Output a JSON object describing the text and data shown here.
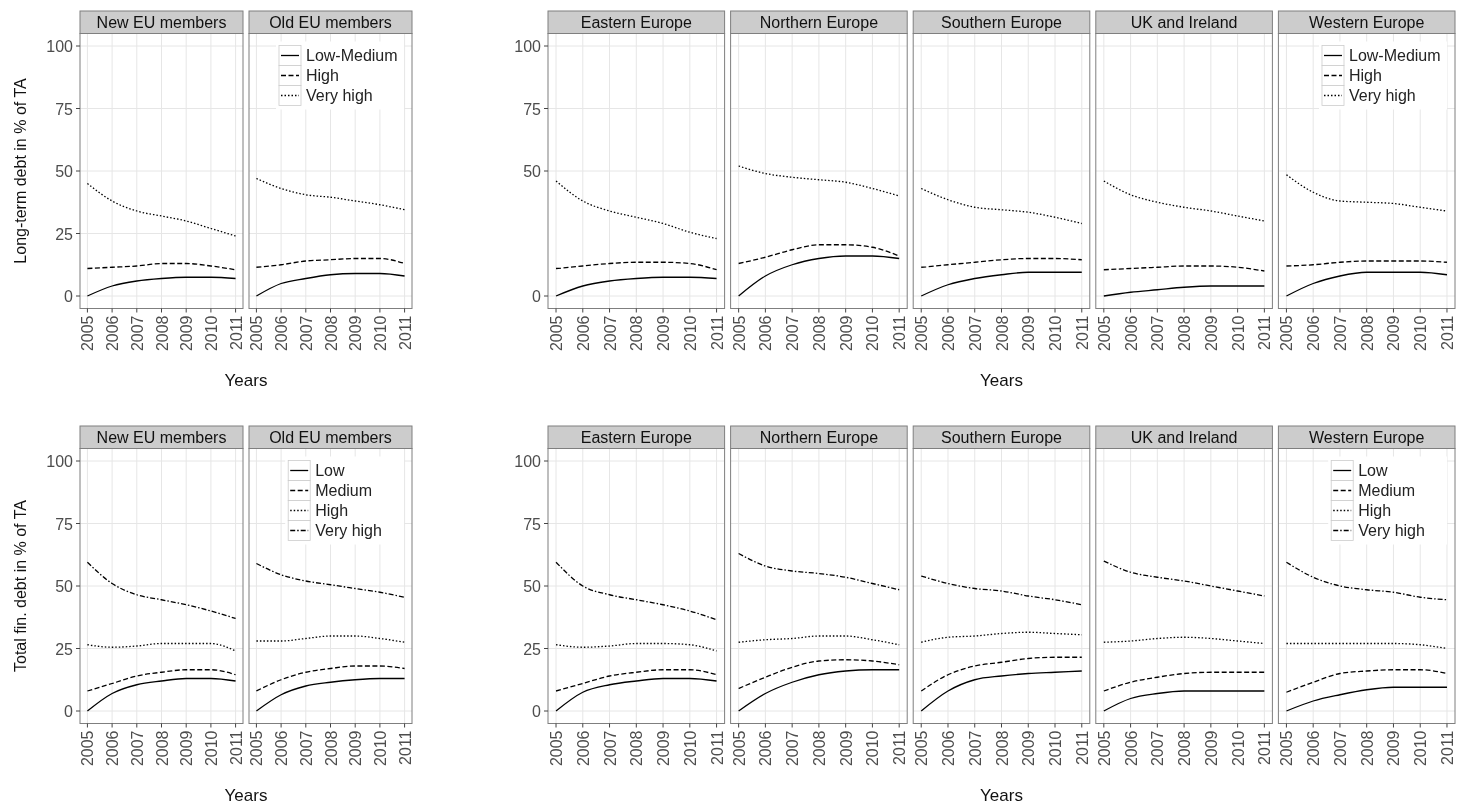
{
  "chart_data": [
    {
      "type": "line",
      "title": "New EU members",
      "ylabel": "Long-term debt in % of TA",
      "xlabel": "Years",
      "x": [
        2005,
        2006,
        2007,
        2008,
        2009,
        2010,
        2011
      ],
      "xlim": [
        2004.7,
        2011.3
      ],
      "xticks": [
        2005,
        2006,
        2007,
        2008,
        2009,
        2010,
        2011
      ],
      "ylim": [
        -5,
        105
      ],
      "yticks": [
        0,
        25,
        50,
        75,
        100
      ],
      "grid": true,
      "series": [
        {
          "color": "#000000",
          "line_style": "solid",
          "values": [
            0,
            4,
            6,
            7,
            7.5,
            7.5,
            7
          ]
        },
        {
          "color": "#000000",
          "line_style": "dashed",
          "values": [
            11,
            11.5,
            12,
            13,
            13,
            12,
            10.5
          ]
        },
        {
          "color": "#000000",
          "line_style": "dotted",
          "values": [
            45,
            38,
            34,
            32,
            30,
            27,
            24
          ]
        }
      ]
    },
    {
      "type": "line",
      "title": "Old EU members",
      "x": [
        2005,
        2006,
        2007,
        2008,
        2009,
        2010,
        2011
      ],
      "xlim": [
        2004.7,
        2011.3
      ],
      "xticks": [
        2005,
        2006,
        2007,
        2008,
        2009,
        2010,
        2011
      ],
      "ylim": [
        -5,
        105
      ],
      "yticks": [
        0,
        25,
        50,
        75,
        100
      ],
      "grid": true,
      "tick_labels": "x",
      "legend": "top right",
      "series": [
        {
          "name": "Low-Medium",
          "color": "#000000",
          "line_style": "solid",
          "values": [
            0,
            5,
            7,
            8.5,
            9,
            9,
            8
          ]
        },
        {
          "name": "High",
          "color": "#000000",
          "line_style": "dashed",
          "values": [
            11.5,
            12.5,
            14,
            14.5,
            15,
            15,
            13
          ]
        },
        {
          "name": "Very high",
          "color": "#000000",
          "line_style": "dotted",
          "values": [
            47,
            43,
            40.5,
            39.5,
            38,
            36.5,
            34.5
          ]
        }
      ]
    },
    {
      "type": "line",
      "title": "Eastern Europe",
      "x": [
        2005,
        2006,
        2007,
        2008,
        2009,
        2010,
        2011
      ],
      "xlim": [
        2004.7,
        2011.3
      ],
      "xticks": [
        2005,
        2006,
        2007,
        2008,
        2009,
        2010,
        2011
      ],
      "ylim": [
        -5,
        105
      ],
      "yticks": [
        0,
        50,
        75,
        100
      ],
      "grid": true,
      "series": [
        {
          "color": "#000000",
          "line_style": "solid",
          "values": [
            0,
            4,
            6,
            7,
            7.5,
            7.5,
            7
          ]
        },
        {
          "color": "#000000",
          "line_style": "dashed",
          "values": [
            11,
            12,
            13,
            13.5,
            13.5,
            13,
            10.5
          ]
        },
        {
          "color": "#000000",
          "line_style": "dotted",
          "values": [
            46,
            38,
            34,
            31.5,
            29,
            25.5,
            23
          ]
        }
      ]
    },
    {
      "type": "line",
      "title": "Northern Europe",
      "x": [
        2005,
        2006,
        2007,
        2008,
        2009,
        2010,
        2011
      ],
      "xlim": [
        2004.7,
        2011.3
      ],
      "xticks": [
        2005,
        2006,
        2007,
        2008,
        2009,
        2010,
        2011
      ],
      "ylim": [
        -5,
        105
      ],
      "yticks": [
        0,
        50,
        75,
        100
      ],
      "grid": true,
      "tick_labels": "x",
      "series": [
        {
          "color": "#000000",
          "line_style": "solid",
          "values": [
            0,
            8,
            12.5,
            15,
            16,
            16,
            15
          ]
        },
        {
          "color": "#000000",
          "line_style": "dashed",
          "values": [
            13,
            15.5,
            18.5,
            20.5,
            20.5,
            19.5,
            16
          ]
        },
        {
          "color": "#000000",
          "line_style": "dotted",
          "values": [
            52,
            49,
            47.5,
            46.5,
            45.5,
            43,
            40
          ]
        }
      ]
    },
    {
      "type": "line",
      "title": "Southern Europe",
      "xlabel": "Years",
      "x": [
        2005,
        2006,
        2007,
        2008,
        2009,
        2010,
        2011
      ],
      "xlim": [
        2004.7,
        2011.3
      ],
      "xticks": [
        2005,
        2006,
        2007,
        2008,
        2009,
        2010,
        2011
      ],
      "ylim": [
        -5,
        105
      ],
      "yticks": [
        0,
        50,
        75,
        100
      ],
      "grid": true,
      "tick_labels": "x",
      "series": [
        {
          "color": "#000000",
          "line_style": "solid",
          "values": [
            0,
            4.5,
            7,
            8.5,
            9.5,
            9.5,
            9.5
          ]
        },
        {
          "color": "#000000",
          "line_style": "dashed",
          "values": [
            11.5,
            12.5,
            13.5,
            14.5,
            15,
            15,
            14.5
          ]
        },
        {
          "color": "#000000",
          "line_style": "dotted",
          "values": [
            43,
            38.5,
            35.5,
            34.5,
            33.5,
            31.5,
            29
          ]
        }
      ]
    },
    {
      "type": "line",
      "title": "UK and Ireland",
      "x": [
        2005,
        2006,
        2007,
        2008,
        2009,
        2010,
        2011
      ],
      "xlim": [
        2004.7,
        2011.3
      ],
      "xticks": [
        2005,
        2006,
        2007,
        2008,
        2009,
        2010,
        2011
      ],
      "ylim": [
        -5,
        105
      ],
      "yticks": [
        0,
        50,
        75,
        100
      ],
      "grid": true,
      "tick_labels": "x",
      "series": [
        {
          "color": "#000000",
          "line_style": "solid",
          "values": [
            0,
            1.5,
            2.5,
            3.5,
            4,
            4,
            4
          ]
        },
        {
          "color": "#000000",
          "line_style": "dashed",
          "values": [
            10.5,
            11,
            11.5,
            12,
            12,
            11.5,
            10
          ]
        },
        {
          "color": "#000000",
          "line_style": "dotted",
          "values": [
            46,
            40.5,
            37.5,
            35.5,
            34,
            32,
            30
          ]
        }
      ]
    },
    {
      "type": "line",
      "title": "Western Europe",
      "x": [
        2005,
        2006,
        2007,
        2008,
        2009,
        2010,
        2011
      ],
      "xlim": [
        2004.7,
        2011.3
      ],
      "xticks": [
        2005,
        2006,
        2007,
        2008,
        2009,
        2010,
        2011
      ],
      "ylim": [
        -5,
        105
      ],
      "yticks": [
        0,
        50,
        75,
        100
      ],
      "grid": true,
      "tick_labels": "x",
      "legend": "top right",
      "series": [
        {
          "name": "Low-Medium",
          "color": "#000000",
          "line_style": "solid",
          "values": [
            0,
            5,
            8,
            9.5,
            9.5,
            9.5,
            8.5
          ]
        },
        {
          "name": "High",
          "color": "#000000",
          "line_style": "dashed",
          "values": [
            12,
            12.5,
            13.5,
            14,
            14,
            14,
            13.5
          ]
        },
        {
          "name": "Very high",
          "color": "#000000",
          "line_style": "dotted",
          "values": [
            48.5,
            41.5,
            38,
            37.5,
            37,
            35.5,
            34
          ]
        }
      ]
    },
    {
      "type": "line",
      "title": "New EU members",
      "ylabel": "Total fin. debt in % of TA",
      "xlabel": "Years",
      "x": [
        2005,
        2006,
        2007,
        2008,
        2009,
        2010,
        2011
      ],
      "xlim": [
        2004.7,
        2011.3
      ],
      "xticks": [
        2005,
        2006,
        2007,
        2008,
        2009,
        2010,
        2011
      ],
      "ylim": [
        -5,
        105
      ],
      "yticks": [
        0,
        25,
        50,
        75,
        100
      ],
      "grid": true,
      "series": [
        {
          "color": "#000000",
          "line_style": "solid",
          "values": [
            0,
            7,
            10.5,
            12,
            13,
            13,
            12
          ]
        },
        {
          "color": "#000000",
          "line_style": "dashed",
          "values": [
            8,
            11,
            14,
            15.5,
            16.5,
            16.5,
            14.5
          ]
        },
        {
          "color": "#000000",
          "line_style": "dotted",
          "values": [
            26.5,
            25.5,
            26,
            27,
            27,
            27,
            24
          ]
        },
        {
          "color": "#000000",
          "line_style": "dashdot",
          "values": [
            59.5,
            51,
            46.5,
            44.5,
            42.5,
            40,
            37
          ]
        }
      ]
    },
    {
      "type": "line",
      "title": "Old EU members",
      "x": [
        2005,
        2006,
        2007,
        2008,
        2009,
        2010,
        2011
      ],
      "xlim": [
        2004.7,
        2011.3
      ],
      "xticks": [
        2005,
        2006,
        2007,
        2008,
        2009,
        2010,
        2011
      ],
      "ylim": [
        -5,
        105
      ],
      "yticks": [
        0,
        25,
        50,
        75,
        100
      ],
      "grid": true,
      "tick_labels": "x",
      "legend": "top right",
      "series": [
        {
          "name": "Low",
          "color": "#000000",
          "line_style": "solid",
          "values": [
            0,
            6.5,
            10,
            11.5,
            12.5,
            13,
            13
          ]
        },
        {
          "name": "Medium",
          "color": "#000000",
          "line_style": "dashed",
          "values": [
            8,
            12.5,
            15.5,
            17,
            18,
            18,
            17
          ]
        },
        {
          "name": "High",
          "color": "#000000",
          "line_style": "dotted",
          "values": [
            28,
            28,
            29,
            30,
            30,
            29,
            27.5
          ]
        },
        {
          "name": "Very high",
          "color": "#000000",
          "line_style": "dashdot",
          "values": [
            59,
            54.5,
            52,
            50.5,
            49,
            47.5,
            45.5
          ]
        }
      ]
    },
    {
      "type": "line",
      "title": "Eastern Europe",
      "x": [
        2005,
        2006,
        2007,
        2008,
        2009,
        2010,
        2011
      ],
      "xlim": [
        2004.7,
        2011.3
      ],
      "xticks": [
        2005,
        2006,
        2007,
        2008,
        2009,
        2010,
        2011
      ],
      "ylim": [
        -5,
        105
      ],
      "yticks": [
        0,
        25,
        50,
        75,
        100
      ],
      "grid": true,
      "series": [
        {
          "color": "#000000",
          "line_style": "solid",
          "values": [
            0,
            7.5,
            10.5,
            12,
            13,
            13,
            12
          ]
        },
        {
          "color": "#000000",
          "line_style": "dashed",
          "values": [
            8,
            11,
            14,
            15.5,
            16.5,
            16.5,
            14.5
          ]
        },
        {
          "color": "#000000",
          "line_style": "dotted",
          "values": [
            26.5,
            25.5,
            26,
            27,
            27,
            26.5,
            24
          ]
        },
        {
          "color": "#000000",
          "line_style": "dashdot",
          "values": [
            59.5,
            50,
            46.5,
            44.5,
            42.5,
            40,
            36.5
          ]
        }
      ]
    },
    {
      "type": "line",
      "title": "Northern Europe",
      "x": [
        2005,
        2006,
        2007,
        2008,
        2009,
        2010,
        2011
      ],
      "xlim": [
        2004.7,
        2011.3
      ],
      "xticks": [
        2005,
        2006,
        2007,
        2008,
        2009,
        2010,
        2011
      ],
      "ylim": [
        -5,
        105
      ],
      "yticks": [
        0,
        25,
        50,
        75,
        100
      ],
      "grid": true,
      "tick_labels": "x",
      "series": [
        {
          "color": "#000000",
          "line_style": "solid",
          "values": [
            0,
            7,
            11.5,
            14.5,
            16,
            16.5,
            16.5
          ]
        },
        {
          "color": "#000000",
          "line_style": "dashed",
          "values": [
            9,
            13.5,
            17.5,
            20,
            20.5,
            20,
            18.5
          ]
        },
        {
          "color": "#000000",
          "line_style": "dotted",
          "values": [
            27.5,
            28.5,
            29,
            30,
            30,
            28.5,
            26.5
          ]
        },
        {
          "color": "#000000",
          "line_style": "dashdot",
          "values": [
            63,
            58,
            56,
            55,
            53.5,
            51,
            48.5
          ]
        }
      ]
    },
    {
      "type": "line",
      "title": "Southern Europe",
      "xlabel": "Years",
      "x": [
        2005,
        2006,
        2007,
        2008,
        2009,
        2010,
        2011
      ],
      "xlim": [
        2004.7,
        2011.3
      ],
      "xticks": [
        2005,
        2006,
        2007,
        2008,
        2009,
        2010,
        2011
      ],
      "ylim": [
        -5,
        105
      ],
      "yticks": [
        0,
        25,
        50,
        75,
        100
      ],
      "grid": true,
      "tick_labels": "x",
      "series": [
        {
          "color": "#000000",
          "line_style": "solid",
          "values": [
            0,
            8,
            12.5,
            14,
            15,
            15.5,
            16
          ]
        },
        {
          "color": "#000000",
          "line_style": "dashed",
          "values": [
            8,
            14.5,
            18,
            19.5,
            21,
            21.5,
            21.5
          ]
        },
        {
          "color": "#000000",
          "line_style": "dotted",
          "values": [
            27.5,
            29.5,
            30,
            31,
            31.5,
            31,
            30.5
          ]
        },
        {
          "color": "#000000",
          "line_style": "dashdot",
          "values": [
            54,
            51,
            49,
            48,
            46,
            44.5,
            42.5
          ]
        }
      ]
    },
    {
      "type": "line",
      "title": "UK and Ireland",
      "x": [
        2005,
        2006,
        2007,
        2008,
        2009,
        2010,
        2011
      ],
      "xlim": [
        2004.7,
        2011.3
      ],
      "xticks": [
        2005,
        2006,
        2007,
        2008,
        2009,
        2010,
        2011
      ],
      "ylim": [
        -5,
        105
      ],
      "yticks": [
        0,
        25,
        50,
        75,
        100
      ],
      "grid": true,
      "tick_labels": "x",
      "series": [
        {
          "color": "#000000",
          "line_style": "solid",
          "values": [
            0,
            5,
            7,
            8,
            8,
            8,
            8
          ]
        },
        {
          "color": "#000000",
          "line_style": "dashed",
          "values": [
            8,
            11.5,
            13.5,
            15,
            15.5,
            15.5,
            15.5
          ]
        },
        {
          "color": "#000000",
          "line_style": "dotted",
          "values": [
            27.5,
            28,
            29,
            29.5,
            29,
            28,
            27
          ]
        },
        {
          "color": "#000000",
          "line_style": "dashdot",
          "values": [
            60,
            55.5,
            53.5,
            52,
            50,
            48,
            46
          ]
        }
      ]
    },
    {
      "type": "line",
      "title": "Western Europe",
      "x": [
        2005,
        2006,
        2007,
        2008,
        2009,
        2010,
        2011
      ],
      "xlim": [
        2004.7,
        2011.3
      ],
      "xticks": [
        2005,
        2006,
        2007,
        2008,
        2009,
        2010,
        2011
      ],
      "ylim": [
        -5,
        105
      ],
      "yticks": [
        0,
        25,
        50,
        75,
        100
      ],
      "grid": true,
      "tick_labels": "x",
      "legend": "top right",
      "series": [
        {
          "name": "Low",
          "color": "#000000",
          "line_style": "solid",
          "values": [
            0,
            4,
            6.5,
            8.5,
            9.5,
            9.5,
            9.5
          ]
        },
        {
          "name": "Medium",
          "color": "#000000",
          "line_style": "dashed",
          "values": [
            7.5,
            11.5,
            15,
            16,
            16.5,
            16.5,
            15
          ]
        },
        {
          "name": "High",
          "color": "#000000",
          "line_style": "dotted",
          "values": [
            27,
            27,
            27,
            27,
            27,
            26.5,
            25
          ]
        },
        {
          "name": "Very high",
          "color": "#000000",
          "line_style": "dashdot",
          "values": [
            59.5,
            53.5,
            50,
            48.5,
            47.5,
            45.5,
            44.5
          ]
        }
      ]
    }
  ]
}
